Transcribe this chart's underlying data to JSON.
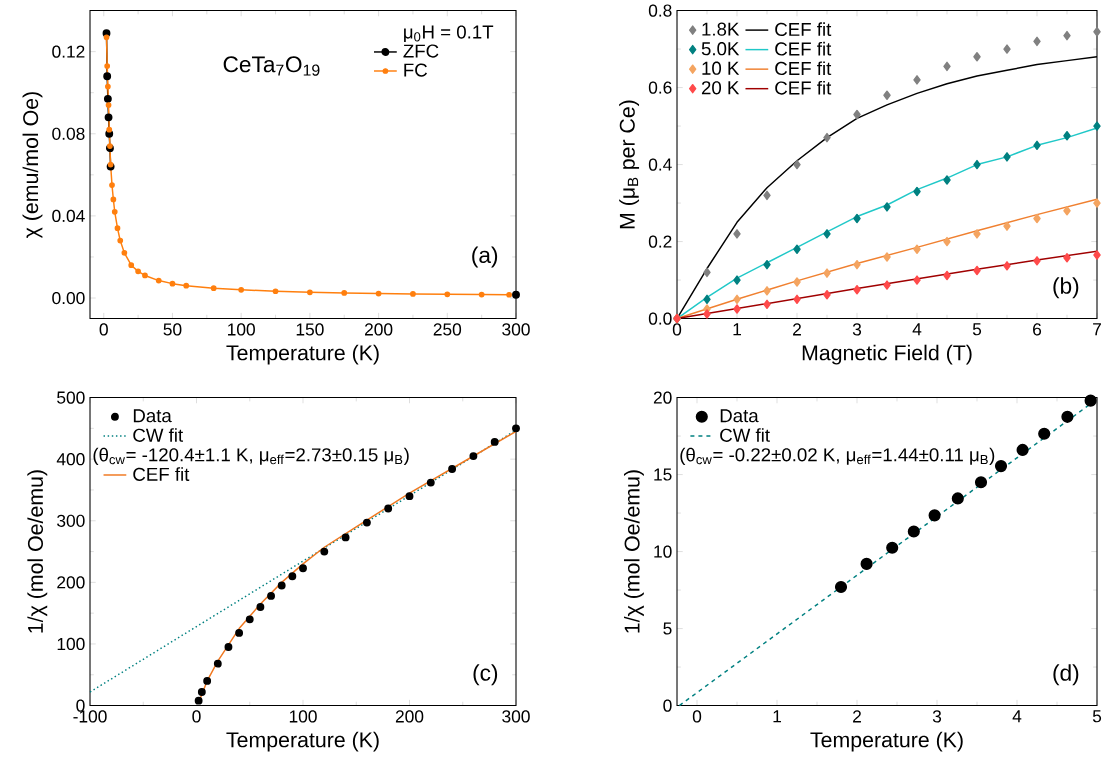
{
  "chart_data": [
    {
      "type": "line",
      "xlabel": "Temperature (K)",
      "ylabel": "χ (emu/mol Oe)",
      "legend_title": "μ$_{0}$H = 0.1T",
      "legend": "top right",
      "annotations": [
        "CeTa$_{7}$O$_{19}$",
        "(a)"
      ],
      "xlim": [
        -10,
        300
      ],
      "xticks": [
        0,
        50,
        100,
        150,
        200,
        250,
        300
      ],
      "ylim": [
        -0.01,
        0.14
      ],
      "yticks": [
        {
          "value": 0,
          "label": "0.00"
        },
        {
          "value": 0.04,
          "label": "0.04"
        },
        {
          "value": 0.08,
          "label": "0.08"
        },
        {
          "value": 0.12,
          "label": "0.12"
        }
      ],
      "series": [
        {
          "name": "ZFC",
          "color": "#000000",
          "marker": "circle",
          "x": [
            2,
            2.5,
            3,
            3.5,
            4,
            4.5,
            5,
            6,
            7,
            8,
            10,
            12,
            15,
            20,
            25,
            30,
            40,
            50,
            60,
            80,
            100,
            125,
            150,
            175,
            200,
            225,
            250,
            275,
            300
          ],
          "values": [
            0.129,
            0.108,
            0.097,
            0.088,
            0.08,
            0.073,
            0.064,
            null,
            null,
            null,
            null,
            null,
            null,
            null,
            null,
            null,
            null,
            null,
            null,
            null,
            null,
            null,
            null,
            null,
            null,
            null,
            null,
            null,
            0.0016
          ]
        },
        {
          "name": "FC",
          "color": "#ff7f0e",
          "marker": "circle",
          "x": [
            2,
            2.5,
            3,
            3.5,
            4,
            4.5,
            5,
            6,
            7,
            8,
            10,
            12,
            15,
            20,
            25,
            30,
            40,
            50,
            60,
            80,
            100,
            125,
            150,
            175,
            200,
            225,
            250,
            275,
            295
          ],
          "values": [
            0.127,
            0.113,
            0.103,
            0.094,
            0.082,
            0.074,
            0.065,
            0.055,
            0.048,
            0.042,
            0.034,
            0.028,
            0.022,
            0.016,
            0.013,
            0.011,
            0.0085,
            0.007,
            0.006,
            0.0048,
            0.004,
            0.0033,
            0.0028,
            0.0025,
            0.0022,
            0.002,
            0.0018,
            0.0017,
            0.0016
          ]
        }
      ]
    },
    {
      "type": "scatter",
      "xlabel": "Magnetic Field (T)",
      "ylabel": "M (μ$_{B}$ per Ce)",
      "legend": "top left",
      "annotations": [
        "(b)"
      ],
      "xlim": [
        0,
        7
      ],
      "xticks": [
        0,
        1,
        2,
        3,
        4,
        5,
        6,
        7
      ],
      "ylim": [
        0,
        0.8
      ],
      "yticks": [
        {
          "value": 0,
          "label": "0.0"
        },
        {
          "value": 0.2,
          "label": "0.2"
        },
        {
          "value": 0.4,
          "label": "0.4"
        },
        {
          "value": 0.6,
          "label": "0.6"
        },
        {
          "value": 0.8,
          "label": "0.8"
        }
      ],
      "series": [
        {
          "name": "1.8K",
          "color": "#808080",
          "marker": "diamond",
          "x": [
            0,
            0.5,
            1,
            1.5,
            2,
            2.5,
            3,
            3.5,
            4,
            4.5,
            5,
            5.5,
            6,
            6.5,
            7
          ],
          "values": [
            0,
            0.12,
            0.22,
            0.32,
            0.4,
            0.47,
            0.53,
            0.58,
            0.62,
            0.655,
            0.68,
            0.7,
            0.72,
            0.735,
            0.745
          ]
        },
        {
          "name": "CEF fit",
          "type": "line",
          "color": "#000000",
          "marker": "none",
          "x": [
            0,
            0.5,
            1,
            1.5,
            2,
            2.5,
            3,
            3.5,
            4,
            4.5,
            5,
            5.5,
            6,
            6.5,
            7
          ],
          "values": [
            0,
            0.13,
            0.25,
            0.34,
            0.41,
            0.47,
            0.52,
            0.555,
            0.585,
            0.61,
            0.63,
            0.645,
            0.66,
            0.67,
            0.68
          ]
        },
        {
          "name": "5.0K",
          "color": "#008080",
          "marker": "diamond",
          "x": [
            0,
            0.5,
            1,
            1.5,
            2,
            2.5,
            3,
            3.5,
            4,
            4.5,
            5,
            5.5,
            6,
            6.5,
            7
          ],
          "values": [
            0,
            0.05,
            0.1,
            0.14,
            0.18,
            0.22,
            0.26,
            0.29,
            0.33,
            0.36,
            0.4,
            0.42,
            0.45,
            0.475,
            0.5
          ]
        },
        {
          "name": "CEF fit",
          "type": "line",
          "color": "#20c8c8",
          "marker": "none",
          "x": [
            0,
            0.5,
            1,
            1.5,
            2,
            2.5,
            3,
            3.5,
            4,
            4.5,
            5,
            5.5,
            6,
            6.5,
            7
          ],
          "values": [
            0,
            0.055,
            0.105,
            0.145,
            0.185,
            0.225,
            0.265,
            0.295,
            0.335,
            0.365,
            0.4,
            0.42,
            0.45,
            0.47,
            0.495
          ]
        },
        {
          "name": "10 K",
          "color": "#f4a460",
          "marker": "diamond",
          "x": [
            0,
            0.5,
            1,
            1.5,
            2,
            2.5,
            3,
            3.5,
            4,
            4.5,
            5,
            5.5,
            6,
            6.5,
            7
          ],
          "values": [
            0,
            0.025,
            0.05,
            0.072,
            0.095,
            0.118,
            0.14,
            0.16,
            0.18,
            0.2,
            0.22,
            0.24,
            0.26,
            0.28,
            0.3
          ]
        },
        {
          "name": "CEF fit",
          "type": "line",
          "color": "#f08030",
          "marker": "none",
          "x": [
            0,
            1,
            2,
            3,
            4,
            5,
            6,
            7
          ],
          "values": [
            0,
            0.05,
            0.098,
            0.143,
            0.185,
            0.228,
            0.27,
            0.31
          ]
        },
        {
          "name": "20 K",
          "color": "#ff4a4a",
          "marker": "diamond",
          "x": [
            0,
            0.5,
            1,
            1.5,
            2,
            2.5,
            3,
            3.5,
            4,
            4.5,
            5,
            5.5,
            6,
            6.5,
            7
          ],
          "values": [
            0,
            0.012,
            0.025,
            0.037,
            0.05,
            0.062,
            0.075,
            0.087,
            0.1,
            0.112,
            0.125,
            0.137,
            0.15,
            0.158,
            0.165
          ]
        },
        {
          "name": "CEF fit",
          "type": "line",
          "color": "#a00000",
          "marker": "none",
          "x": [
            0,
            1,
            2,
            3,
            4,
            5,
            6,
            7
          ],
          "values": [
            0,
            0.026,
            0.052,
            0.078,
            0.103,
            0.128,
            0.152,
            0.175
          ]
        }
      ]
    },
    {
      "type": "scatter",
      "xlabel": "Temperature (K)",
      "ylabel": "1/χ (mol Oe/emu)",
      "legend": "top left",
      "annotations": [
        "(θ$_{cw}$= -120.4±1.1 K, μ$_{eff}$=2.73±0.15 μ$_{B}$)",
        "(c)"
      ],
      "xlim": [
        -100,
        300
      ],
      "xticks": [
        -100,
        0,
        100,
        200,
        300
      ],
      "ylim": [
        0,
        500
      ],
      "yticks": [
        0,
        100,
        200,
        300,
        400,
        500
      ],
      "series": [
        {
          "name": "Data",
          "color": "#000000",
          "marker": "circle",
          "x": [
            2,
            5,
            10,
            20,
            30,
            40,
            50,
            60,
            70,
            80,
            90,
            100,
            120,
            140,
            160,
            180,
            200,
            220,
            240,
            260,
            280,
            300
          ],
          "values": [
            8,
            22,
            40,
            68,
            95,
            118,
            140,
            160,
            178,
            195,
            210,
            223,
            250,
            273,
            297,
            320,
            340,
            362,
            384,
            405,
            428,
            450
          ]
        },
        {
          "name": "CW fit",
          "type": "line",
          "line_style": "dotted",
          "color": "#008080",
          "marker": "none",
          "x": [
            -100,
            300
          ],
          "values": [
            22,
            447
          ]
        },
        {
          "name": "CEF fit",
          "type": "line",
          "color": "#f07820",
          "marker": "none",
          "x": [
            2,
            10,
            20,
            40,
            60,
            80,
            100,
            120,
            150,
            200,
            250,
            300
          ],
          "values": [
            5,
            40,
            72,
            125,
            165,
            200,
            230,
            257,
            290,
            345,
            395,
            445
          ]
        }
      ]
    },
    {
      "type": "scatter",
      "xlabel": "Temperature (K)",
      "ylabel": "1/χ (mol Oe/emu)",
      "legend": "top left",
      "annotations": [
        "(θ$_{cw}$= -0.22±0.02 K, μ$_{eff}$=1.44±0.11 μ$_{B}$)",
        "(d)"
      ],
      "xlim": [
        -0.25,
        5
      ],
      "xticks": [
        0,
        1,
        2,
        3,
        4,
        5
      ],
      "ylim": [
        0,
        20
      ],
      "yticks": [
        0,
        5,
        10,
        15,
        20
      ],
      "series": [
        {
          "name": "Data",
          "color": "#000000",
          "marker": "circle",
          "x": [
            1.8,
            2.12,
            2.44,
            2.71,
            2.97,
            3.26,
            3.55,
            3.8,
            4.07,
            4.34,
            4.63,
            4.92
          ],
          "values": [
            7.7,
            9.2,
            10.25,
            11.3,
            12.35,
            13.45,
            14.5,
            15.55,
            16.6,
            17.65,
            18.75,
            19.8
          ]
        },
        {
          "name": "CW fit",
          "type": "line",
          "line_style": "dashed",
          "color": "#008080",
          "marker": "none",
          "x": [
            -0.22,
            5
          ],
          "values": [
            0,
            19.9
          ]
        }
      ]
    }
  ]
}
